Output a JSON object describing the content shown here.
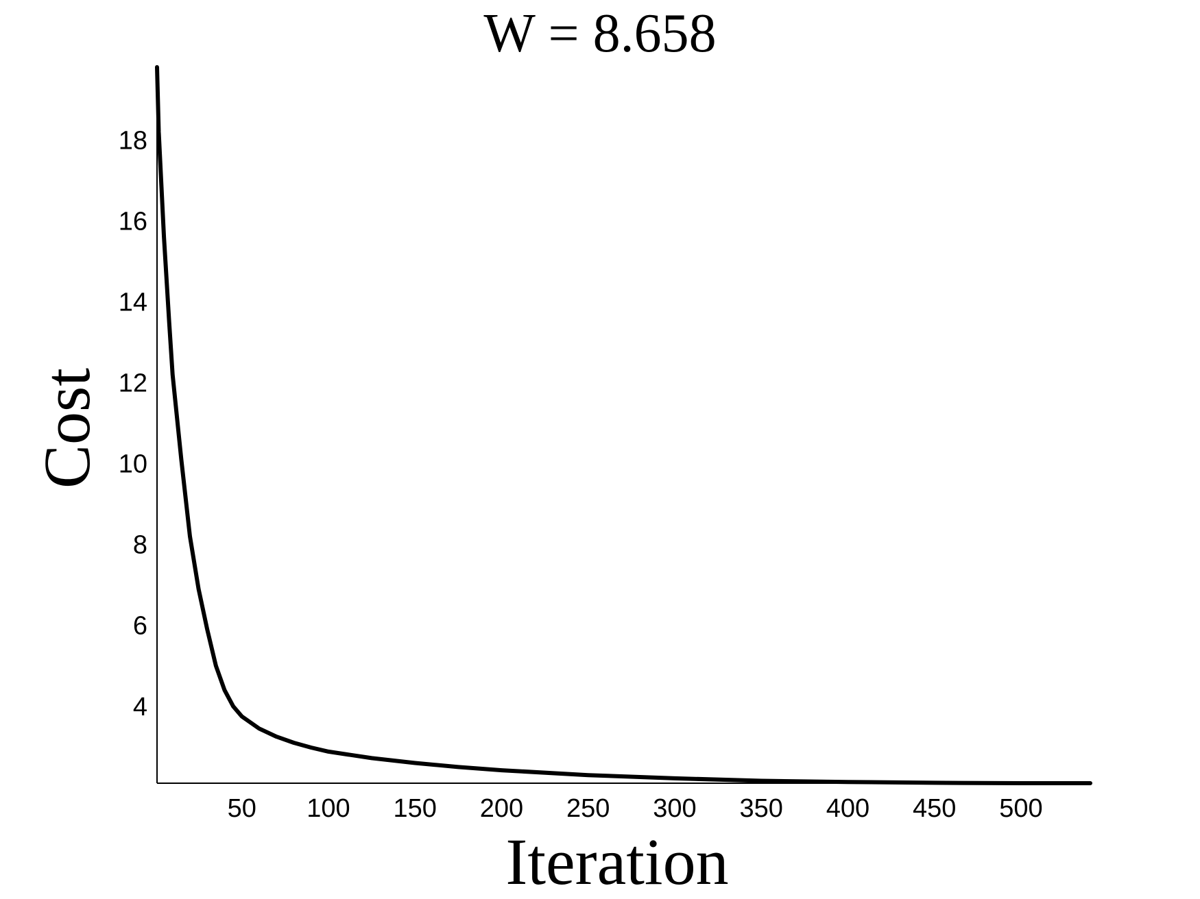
{
  "chart_data": {
    "type": "line",
    "title": "W = 8.658",
    "xlabel": "Iteration",
    "ylabel": "Cost",
    "xlim": [
      1,
      540
    ],
    "ylim": [
      2.1,
      19.8
    ],
    "grid": false,
    "legend": "none",
    "x_ticks": [
      50,
      100,
      150,
      200,
      250,
      300,
      350,
      400,
      450,
      500
    ],
    "x_tick_labels": [
      "50",
      "100",
      "150",
      "200",
      "250",
      "300",
      "350",
      "400",
      "450",
      "500"
    ],
    "y_ticks": [
      4,
      6,
      8,
      10,
      12,
      14,
      16,
      18
    ],
    "y_tick_labels": [
      "4",
      "6",
      "8",
      "10",
      "12",
      "14",
      "16",
      "18"
    ],
    "series": [
      {
        "color": "#000000",
        "x": [
          1,
          2,
          5,
          8,
          10,
          15,
          20,
          25,
          30,
          35,
          40,
          45,
          50,
          60,
          70,
          80,
          90,
          100,
          125,
          150,
          175,
          200,
          250,
          300,
          350,
          400,
          450,
          500,
          540
        ],
        "y": [
          19.8,
          18.2,
          15.6,
          13.5,
          12.2,
          10.1,
          8.2,
          6.9,
          5.9,
          5.0,
          4.4,
          4.0,
          3.75,
          3.45,
          3.25,
          3.1,
          2.98,
          2.88,
          2.72,
          2.6,
          2.5,
          2.42,
          2.3,
          2.22,
          2.16,
          2.13,
          2.11,
          2.1,
          2.1
        ]
      }
    ]
  }
}
